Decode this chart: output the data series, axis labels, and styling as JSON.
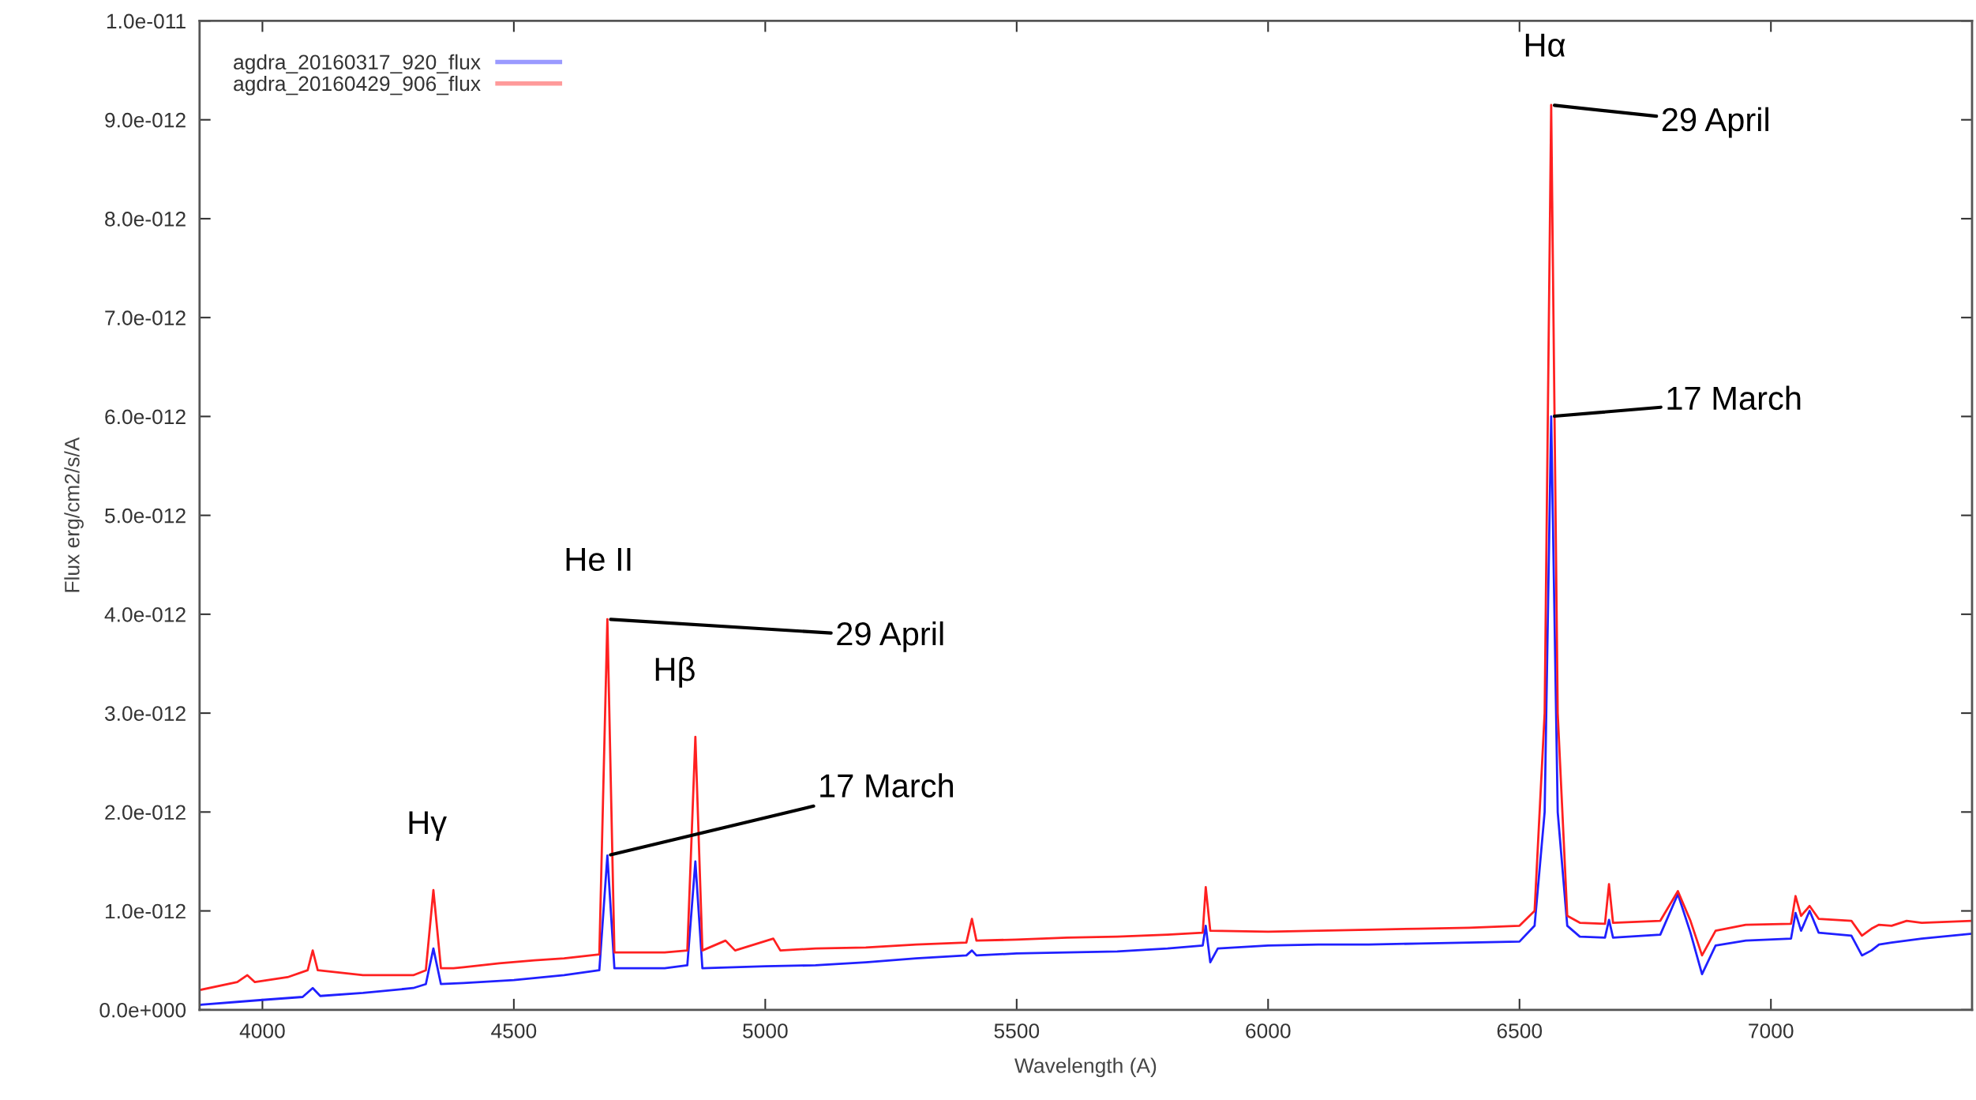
{
  "chart_data": {
    "type": "line",
    "xlabel": "Wavelength (A)",
    "ylabel": "Flux erg/cm2/s/A",
    "xlim": [
      3875,
      7400
    ],
    "xticks": [
      4000,
      4500,
      5000,
      5500,
      6000,
      6500,
      7000
    ],
    "ylim": [
      0,
      1e-11
    ],
    "yticks": [
      {
        "value": 0,
        "label": "0.0e+000"
      },
      {
        "value": 1e-12,
        "label": "1.0e-012"
      },
      {
        "value": 2e-12,
        "label": "2.0e-012"
      },
      {
        "value": 3e-12,
        "label": "3.0e-012"
      },
      {
        "value": 4e-12,
        "label": "4.0e-012"
      },
      {
        "value": 5e-12,
        "label": "5.0e-012"
      },
      {
        "value": 6e-12,
        "label": "6.0e-012"
      },
      {
        "value": 7e-12,
        "label": "7.0e-012"
      },
      {
        "value": 8e-12,
        "label": "8.0e-012"
      },
      {
        "value": 9e-12,
        "label": "9.0e-012"
      },
      {
        "value": 1e-11,
        "label": "1.0e-011"
      }
    ],
    "legend": "top left",
    "grid": false,
    "series": [
      {
        "name": "agdra_20160317_920_flux",
        "color": "#2020ff",
        "x": [
          3875,
          3950,
          4000,
          4080,
          4100,
          4115,
          4200,
          4300,
          4325,
          4340,
          4355,
          4400,
          4500,
          4600,
          4670,
          4686,
          4700,
          4800,
          4845,
          4861,
          4875,
          5000,
          5100,
          5200,
          5300,
          5400,
          5411,
          5420,
          5500,
          5600,
          5700,
          5800,
          5870,
          5876,
          5885,
          5900,
          6000,
          6100,
          6200,
          6300,
          6400,
          6500,
          6530,
          6550,
          6563,
          6576,
          6595,
          6620,
          6670,
          6678,
          6686,
          6780,
          6815,
          6840,
          6863,
          6890,
          6950,
          7040,
          7049,
          7060,
          7077,
          7095,
          7160,
          7181,
          7200,
          7215,
          7240,
          7300,
          7400
        ],
        "values": [
          5e-14,
          8e-14,
          1e-13,
          1.3e-13,
          2.2e-13,
          1.4e-13,
          1.7e-13,
          2.2e-13,
          2.6e-13,
          6.2e-13,
          2.6e-13,
          2.7e-13,
          3e-13,
          3.5e-13,
          4e-13,
          1.56e-12,
          4.2e-13,
          4.2e-13,
          4.5e-13,
          1.5e-12,
          4.2e-13,
          4.4e-13,
          4.5e-13,
          4.8e-13,
          5.2e-13,
          5.5e-13,
          6e-13,
          5.5e-13,
          5.7e-13,
          5.8e-13,
          5.9e-13,
          6.2e-13,
          6.5e-13,
          8.5e-13,
          4.8e-13,
          6.2e-13,
          6.5e-13,
          6.6e-13,
          6.6e-13,
          6.7e-13,
          6.8e-13,
          6.9e-13,
          8.5e-13,
          2e-12,
          6e-12,
          2e-12,
          8.5e-13,
          7.4e-13,
          7.3e-13,
          9.1e-13,
          7.3e-13,
          7.6e-13,
          1.17e-12,
          7.8e-13,
          3.6e-13,
          6.5e-13,
          7e-13,
          7.2e-13,
          9.8e-13,
          8e-13,
          1e-12,
          7.8e-13,
          7.5e-13,
          5.5e-13,
          6e-13,
          6.6e-13,
          6.8e-13,
          7.2e-13,
          7.7e-13
        ]
      },
      {
        "name": "agdra_20160429_906_flux",
        "color": "#ff2020",
        "x": [
          3875,
          3950,
          3970,
          3985,
          4050,
          4090,
          4100,
          4110,
          4200,
          4300,
          4325,
          4340,
          4355,
          4380,
          4400,
          4471,
          4541,
          4600,
          4670,
          4686,
          4700,
          4800,
          4845,
          4861,
          4875,
          4921,
          4940,
          5016,
          5030,
          5100,
          5200,
          5300,
          5400,
          5411,
          5420,
          5500,
          5600,
          5700,
          5800,
          5870,
          5876,
          5885,
          6000,
          6100,
          6200,
          6300,
          6400,
          6500,
          6530,
          6550,
          6563,
          6576,
          6595,
          6620,
          6670,
          6678,
          6686,
          6780,
          6815,
          6840,
          6863,
          6890,
          6950,
          7040,
          7049,
          7060,
          7077,
          7095,
          7160,
          7181,
          7200,
          7215,
          7240,
          7270,
          7300,
          7400
        ],
        "values": [
          2e-13,
          2.8e-13,
          3.5e-13,
          2.8e-13,
          3.3e-13,
          4e-13,
          6e-13,
          4e-13,
          3.5e-13,
          3.5e-13,
          4e-13,
          1.21e-12,
          4.2e-13,
          4.2e-13,
          4.3e-13,
          4.7e-13,
          5e-13,
          5.2e-13,
          5.6e-13,
          3.95e-12,
          5.8e-13,
          5.8e-13,
          6e-13,
          2.76e-12,
          6e-13,
          7e-13,
          6e-13,
          7.2e-13,
          6e-13,
          6.2e-13,
          6.3e-13,
          6.6e-13,
          6.8e-13,
          9.2e-13,
          7e-13,
          7.1e-13,
          7.3e-13,
          7.4e-13,
          7.6e-13,
          7.8e-13,
          1.24e-12,
          8e-13,
          7.9e-13,
          8e-13,
          8.1e-13,
          8.2e-13,
          8.3e-13,
          8.5e-13,
          1e-12,
          3e-12,
          9.15e-12,
          3e-12,
          9.5e-13,
          8.8e-13,
          8.7e-13,
          1.27e-12,
          8.8e-13,
          9e-13,
          1.2e-12,
          9e-13,
          5.5e-13,
          8e-13,
          8.6e-13,
          8.7e-13,
          1.15e-12,
          9.5e-13,
          1.05e-12,
          9.2e-13,
          9e-13,
          7.5e-13,
          8.2e-13,
          8.6e-13,
          8.5e-13,
          9e-13,
          8.8e-13,
          9e-13
        ]
      }
    ],
    "annotations": [
      {
        "text": "Hγ",
        "x": 4340,
        "y": 1.21e-12
      },
      {
        "text": "He II",
        "x": 4686,
        "y": 3.95e-12
      },
      {
        "text": "Hβ",
        "x": 4861,
        "y": 2.76e-12
      },
      {
        "text": "Hα",
        "x": 6563,
        "y": 9.15e-12
      },
      {
        "text": "29 April",
        "x": 6563,
        "y": 9.15e-12
      },
      {
        "text": "17 March",
        "x": 6563,
        "y": 6e-12
      },
      {
        "text": "29 April",
        "x": 4686,
        "y": 3.95e-12
      },
      {
        "text": "17 March",
        "x": 4686,
        "y": 1.56e-12
      }
    ]
  }
}
